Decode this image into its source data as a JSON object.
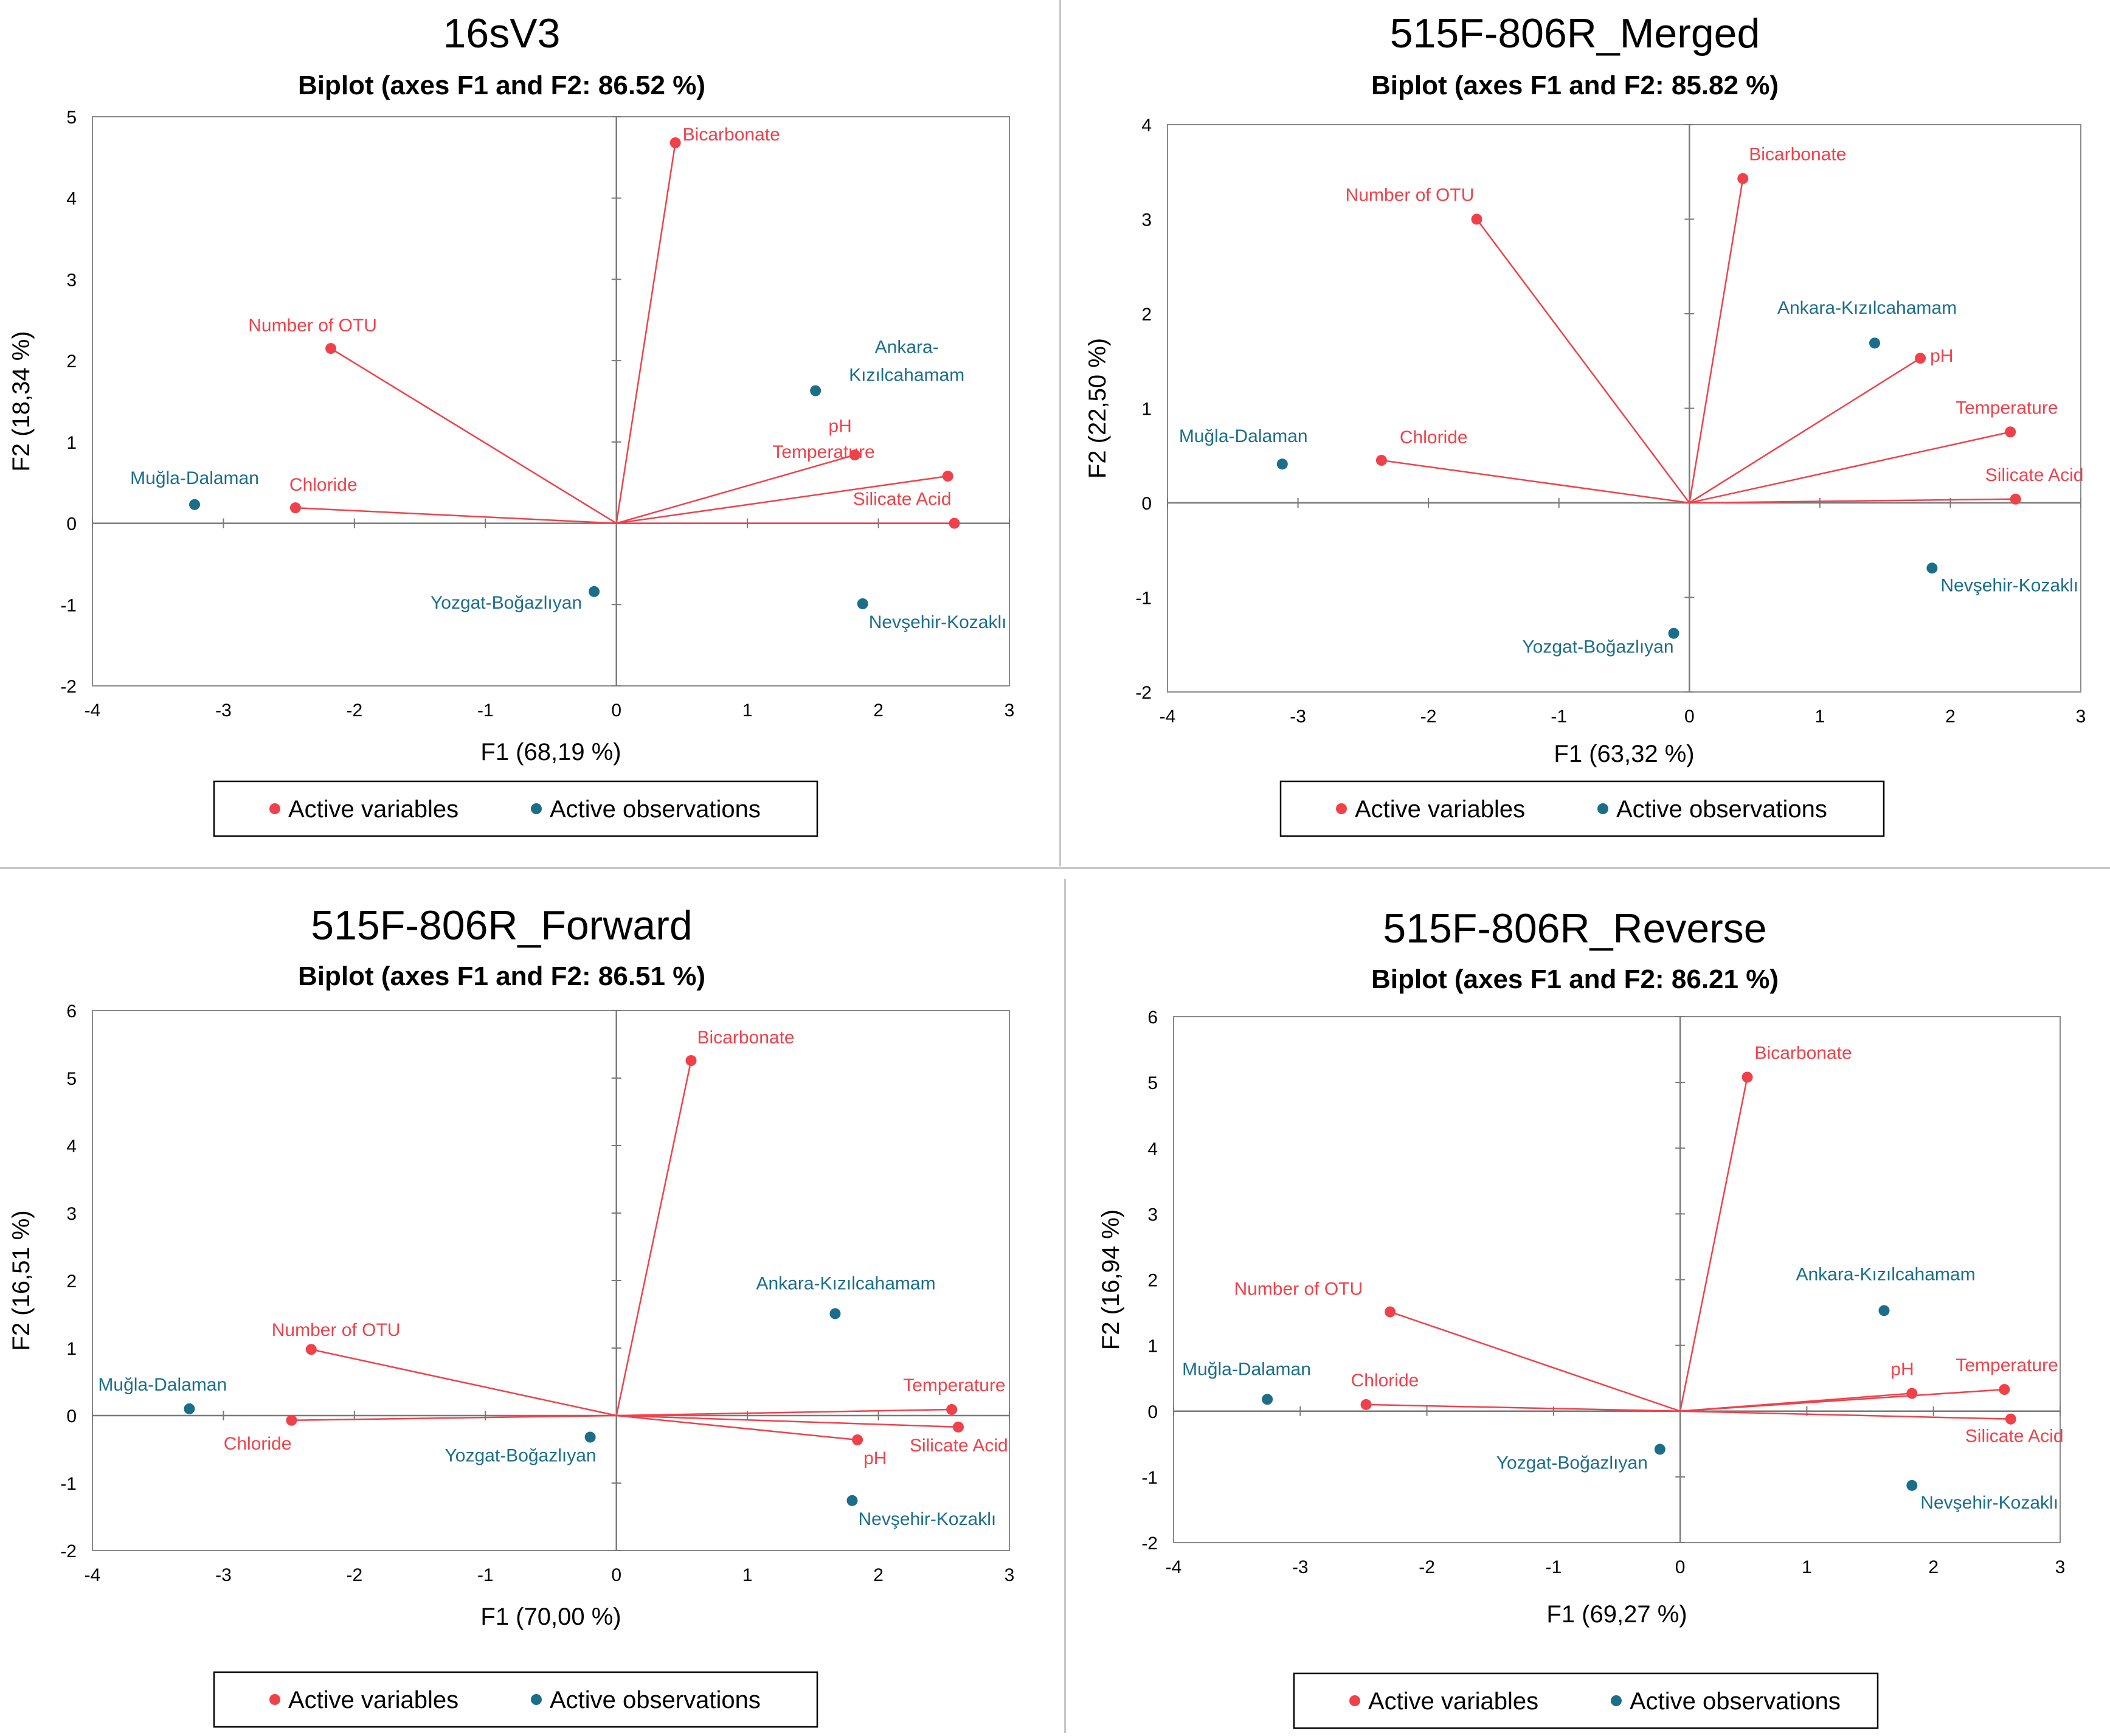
{
  "legend": {
    "variables": "Active variables",
    "observations": "Active observations"
  },
  "colors": {
    "variable": "#f0414b",
    "observation": "#1b6e8a",
    "axis": "#7a7a7a",
    "frame": "#8a8a8a",
    "text": "#000000"
  },
  "chart_data": [
    {
      "type": "scatter",
      "title": "16sV3",
      "subtitle": "Biplot (axes F1 and F2: 86.52 %)",
      "xlabel": "F1 (68,19 %)",
      "ylabel": "F2 (18,34 %)",
      "xlim": [
        -4,
        3
      ],
      "ylim": [
        -2,
        5
      ],
      "xticks": [
        "-4",
        "-3",
        "-2",
        "-1",
        "0",
        "1",
        "2",
        "3"
      ],
      "yticks": [
        "-2",
        "-1",
        "0",
        "1",
        "2",
        "3",
        "4",
        "5"
      ],
      "variables": [
        {
          "name": "Bicarbonate",
          "x": 0.45,
          "y": 4.68
        },
        {
          "name": "Number of OTU",
          "x": -2.18,
          "y": 2.15
        },
        {
          "name": "Chloride",
          "x": -2.45,
          "y": 0.19
        },
        {
          "name": "pH",
          "x": 1.82,
          "y": 0.84
        },
        {
          "name": "Temperature",
          "x": 2.53,
          "y": 0.58
        },
        {
          "name": "Silicate Acid",
          "x": 2.58,
          "y": 0.0
        }
      ],
      "observations": [
        {
          "name": "Ankara-Kızılcahamam",
          "x": 1.52,
          "y": 1.63
        },
        {
          "name": "Muğla-Dalaman",
          "x": -3.22,
          "y": 0.23
        },
        {
          "name": "Yozgat-Boğazlıyan",
          "x": -0.17,
          "y": -0.84
        },
        {
          "name": "Nevşehir-Kozaklı",
          "x": 1.88,
          "y": -0.99
        }
      ]
    },
    {
      "type": "scatter",
      "title": "515F-806R_Merged",
      "subtitle": "Biplot (axes F1 and F2: 85.82 %)",
      "xlabel": "F1 (63,32 %)",
      "ylabel": "F2 (22,50 %)",
      "xlim": [
        -4,
        3
      ],
      "ylim": [
        -2,
        4
      ],
      "xticks": [
        "-4",
        "-3",
        "-2",
        "-1",
        "0",
        "1",
        "2",
        "3"
      ],
      "yticks": [
        "-2",
        "-1",
        "0",
        "1",
        "2",
        "3",
        "4"
      ],
      "variables": [
        {
          "name": "Bicarbonate",
          "x": 0.41,
          "y": 3.43
        },
        {
          "name": "Number of OTU",
          "x": -1.63,
          "y": 3.0
        },
        {
          "name": "Chloride",
          "x": -2.36,
          "y": 0.45
        },
        {
          "name": "pH",
          "x": 1.77,
          "y": 1.53
        },
        {
          "name": "Temperature",
          "x": 2.46,
          "y": 0.75
        },
        {
          "name": "Silicate Acid",
          "x": 2.5,
          "y": 0.04
        }
      ],
      "observations": [
        {
          "name": "Ankara-Kızılcahamam",
          "x": 1.42,
          "y": 1.69
        },
        {
          "name": "Muğla-Dalaman",
          "x": -3.12,
          "y": 0.41
        },
        {
          "name": "Nevşehir-Kozaklı",
          "x": 1.86,
          "y": -0.69
        },
        {
          "name": "Yozgat-Boğazlıyan",
          "x": -0.12,
          "y": -1.38
        }
      ]
    },
    {
      "type": "scatter",
      "title": "515F-806R_Forward",
      "subtitle": "Biplot (axes F1 and F2: 86.51 %)",
      "xlabel": "F1 (70,00 %)",
      "ylabel": "F2 (16,51 %)",
      "xlim": [
        -4,
        3
      ],
      "ylim": [
        -2,
        6
      ],
      "xticks": [
        "-4",
        "-3",
        "-2",
        "-1",
        "0",
        "1",
        "2",
        "3"
      ],
      "yticks": [
        "-2",
        "-1",
        "0",
        "1",
        "2",
        "3",
        "4",
        "5",
        "6"
      ],
      "variables": [
        {
          "name": "Bicarbonate",
          "x": 0.57,
          "y": 5.26
        },
        {
          "name": "Number of OTU",
          "x": -2.33,
          "y": 0.98
        },
        {
          "name": "Chloride",
          "x": -2.48,
          "y": -0.07
        },
        {
          "name": "Temperature",
          "x": 2.56,
          "y": 0.09
        },
        {
          "name": "Silicate Acid",
          "x": 2.61,
          "y": -0.17
        },
        {
          "name": "pH",
          "x": 1.84,
          "y": -0.36
        }
      ],
      "observations": [
        {
          "name": "Ankara-Kızılcahamam",
          "x": 1.67,
          "y": 1.51
        },
        {
          "name": "Muğla-Dalaman",
          "x": -3.26,
          "y": 0.1
        },
        {
          "name": "Yozgat-Boğazlıyan",
          "x": -0.2,
          "y": -0.32
        },
        {
          "name": "Nevşehir-Kozaklı",
          "x": 1.8,
          "y": -1.26
        }
      ]
    },
    {
      "type": "scatter",
      "title": "515F-806R_Reverse",
      "subtitle": "Biplot (axes F1 and F2: 86.21 %)",
      "xlabel": "F1 (69,27 %)",
      "ylabel": "F2 (16,94 %)",
      "xlim": [
        -4,
        3
      ],
      "ylim": [
        -2,
        6
      ],
      "xticks": [
        "-4",
        "-3",
        "-2",
        "-1",
        "0",
        "1",
        "2",
        "3"
      ],
      "yticks": [
        "-2",
        "-1",
        "0",
        "1",
        "2",
        "3",
        "4",
        "5",
        "6"
      ],
      "variables": [
        {
          "name": "Bicarbonate",
          "x": 0.53,
          "y": 5.08
        },
        {
          "name": "Number of OTU",
          "x": -2.29,
          "y": 1.51
        },
        {
          "name": "Chloride",
          "x": -2.48,
          "y": 0.1
        },
        {
          "name": "pH",
          "x": 1.83,
          "y": 0.27
        },
        {
          "name": "Temperature",
          "x": 2.56,
          "y": 0.33
        },
        {
          "name": "Silicate Acid",
          "x": 2.61,
          "y": -0.12
        }
      ],
      "observations": [
        {
          "name": "Ankara-Kızılcahamam",
          "x": 1.61,
          "y": 1.53
        },
        {
          "name": "Muğla-Dalaman",
          "x": -3.26,
          "y": 0.18
        },
        {
          "name": "Yozgat-Boğazlıyan",
          "x": -0.16,
          "y": -0.58
        },
        {
          "name": "Nevşehir-Kozaklı",
          "x": 1.83,
          "y": -1.13
        }
      ]
    }
  ]
}
